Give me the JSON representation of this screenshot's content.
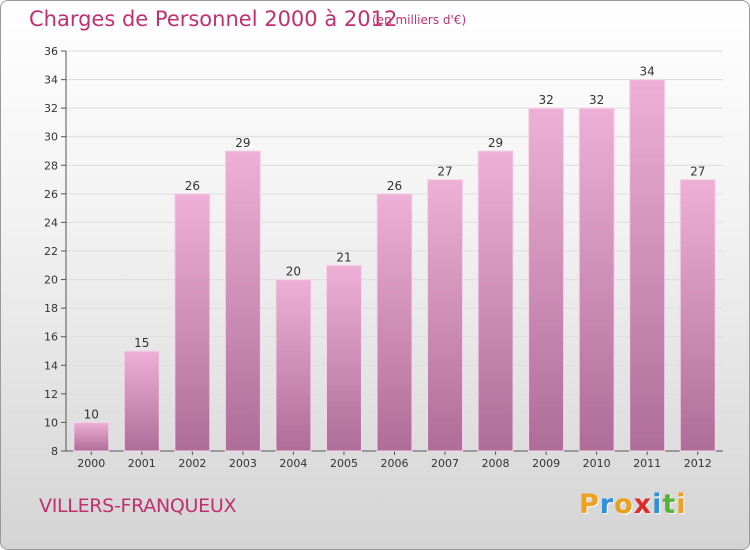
{
  "header": {
    "title": "Charges de Personnel 2000 à 2012",
    "subtitle": "(en milliers d'€)"
  },
  "footer": {
    "commune": "VILLERS-FRANQUEUX",
    "brand_letters": [
      {
        "char": "P",
        "color": "#f0a020"
      },
      {
        "char": "r",
        "color": "#2f8fd8"
      },
      {
        "char": "o",
        "color": "#e8a020"
      },
      {
        "char": "x",
        "color": "#e02a2a"
      },
      {
        "char": "i",
        "color": "#2f8fd8"
      },
      {
        "char": "t",
        "color": "#56b43a"
      },
      {
        "char": "i",
        "color": "#f0a020"
      }
    ]
  },
  "colors": {
    "title": "#c0306f",
    "bar_light": "#eeb0d6",
    "bar_dark": "#ae6d98",
    "bar_stroke": "#f4d6e8",
    "axis": "#555555",
    "grid": "#dddddd"
  },
  "chart_data": {
    "type": "bar",
    "categories": [
      "2000",
      "2001",
      "2002",
      "2003",
      "2004",
      "2005",
      "2006",
      "2007",
      "2008",
      "2009",
      "2010",
      "2011",
      "2012"
    ],
    "values": [
      10,
      15,
      26,
      29,
      20,
      21,
      26,
      27,
      29,
      32,
      32,
      34,
      27
    ],
    "data_labels": [
      "10",
      "15",
      "26",
      "29",
      "20",
      "21",
      "26",
      "27",
      "29",
      "32",
      "32",
      "34",
      "27"
    ],
    "ylim": [
      8,
      36
    ],
    "yticks": [
      8,
      10,
      12,
      14,
      16,
      18,
      20,
      22,
      24,
      26,
      28,
      30,
      32,
      34,
      36
    ],
    "grid": true,
    "title": "Charges de Personnel 2000 à 2012",
    "subtitle": "(en milliers d'€)"
  }
}
